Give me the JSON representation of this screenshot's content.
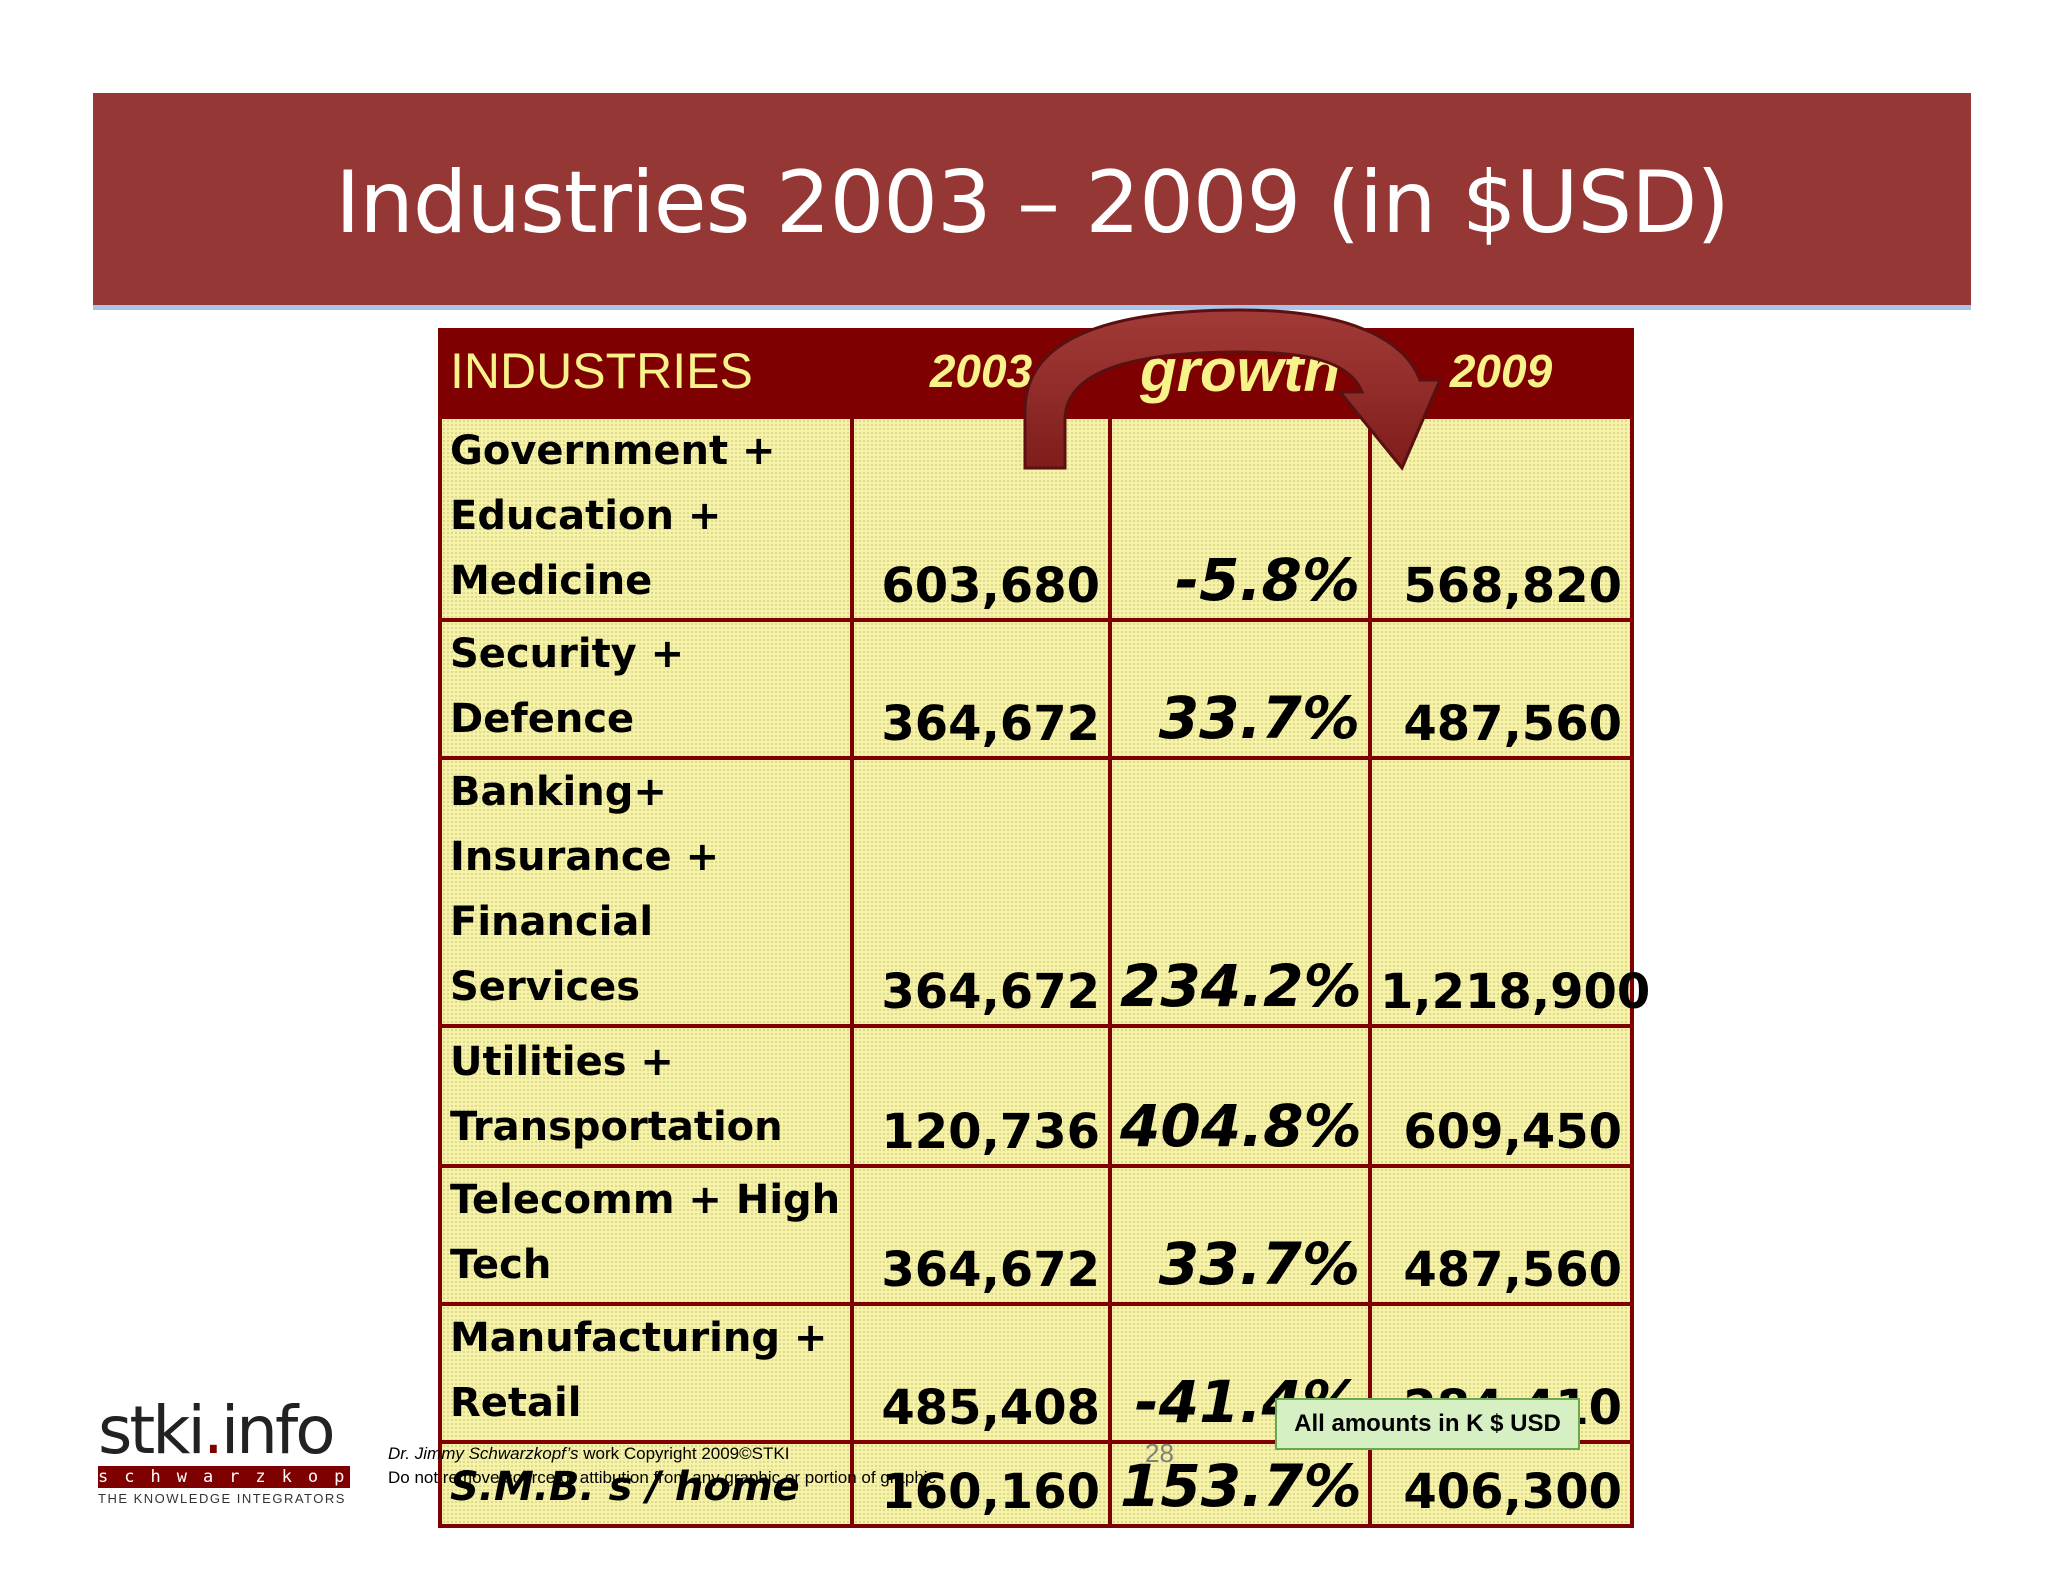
{
  "slide": {
    "title": "Industries 2003 – 2009 (in  $USD)",
    "page_number": "28"
  },
  "table": {
    "headers": {
      "industries": "INDUSTRIES",
      "year_2003": "2003",
      "growth": "growth",
      "year_2009": "2009"
    },
    "rows": [
      {
        "industry": [
          "Government +",
          "Education +",
          "Medicine"
        ],
        "v2003": "603,680",
        "growth": "-5.8%",
        "v2009": "568,820"
      },
      {
        "industry": [
          "Security + Defence"
        ],
        "v2003": "364,672",
        "growth": "33.7%",
        "v2009": "487,560"
      },
      {
        "industry": [
          "Banking+",
          "Insurance +",
          "Financial Services"
        ],
        "v2003": "364,672",
        "growth": "234.2%",
        "v2009": "1,218,900"
      },
      {
        "industry": [
          "Utilities +",
          "Transportation"
        ],
        "v2003": "120,736",
        "growth": "404.8%",
        "v2009": "609,450"
      },
      {
        "industry": [
          "Telecomm +  High",
          "Tech"
        ],
        "v2003": "364,672",
        "growth": "33.7%",
        "v2009": "487,560"
      },
      {
        "industry": [
          "Manufacturing +",
          "Retail"
        ],
        "v2003": "485,408",
        "growth": "-41.4%",
        "v2009": "284,410"
      },
      {
        "industry": [
          "S.M.B. s / home"
        ],
        "v2003": "160,160",
        "growth": "153.7%",
        "v2009": "406,300"
      }
    ]
  },
  "note": "All amounts in K $ USD",
  "logo": {
    "main_a": "stki",
    "main_dot": ".",
    "main_b": "info",
    "strip": "schwarzkopf",
    "tagline": "THE KNOWLEDGE INTEGRATORS"
  },
  "footer": {
    "author": "Dr. Jimmy Schwarzkopf’s",
    "copyright_rest": " work Copyright 2009©STKI",
    "line2": "Do not remove source or attibution from any graphic or portion of graphic"
  },
  "colors": {
    "title_bar": "#953735",
    "header_bg": "#7f0000",
    "growth_header_bg": "#4f6a2e",
    "cell_bg": "#f7f3a8",
    "arrow": "#7f0000"
  },
  "icons": {
    "arrow": "curved-arrow-icon"
  }
}
